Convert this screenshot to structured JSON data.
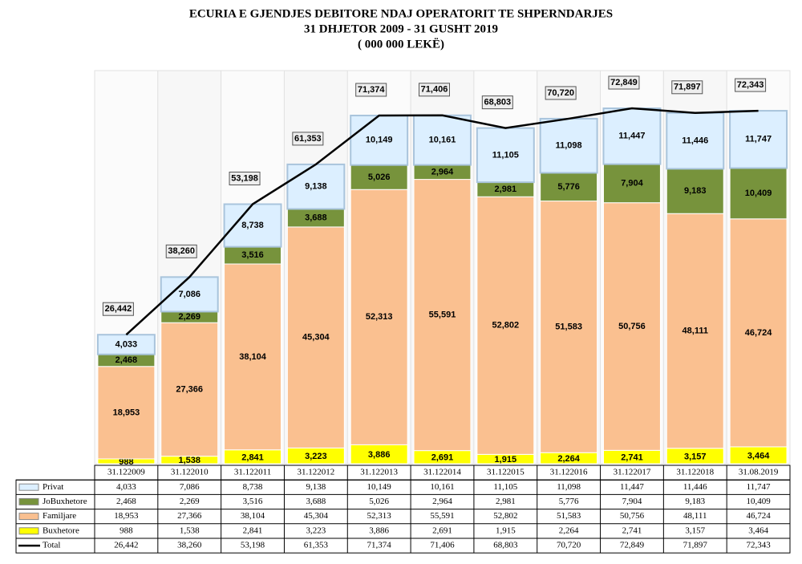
{
  "chart_data": {
    "type": "stacked-bar",
    "title": "ECURIA E GJENDJES DEBITORE NDAJ OPERATORIT TE SHPERNDARJES",
    "subtitle": [
      "31 DHJETOR 2009  - 31 GUSHT 2019",
      "( 000 000 LEKË)"
    ],
    "categories": [
      "31.122009",
      "31.122010",
      "31.122011",
      "31.122012",
      "31.122013",
      "31.122014",
      "31.122015",
      "31.122016",
      "31.122017",
      "31.122018",
      "31.08.2019"
    ],
    "series": [
      {
        "name": "Buxhetore",
        "color": "#ffff00",
        "values": [
          988,
          1538,
          2841,
          3223,
          3886,
          2691,
          1915,
          2264,
          2741,
          3157,
          3464
        ],
        "value_labels": [
          "988",
          "1,538",
          "2,841",
          "3,223",
          "3,886",
          "2,691",
          "1,915",
          "2,264",
          "2,741",
          "3,157",
          "3,464"
        ]
      },
      {
        "name": "Familjare",
        "color": "#fac090",
        "values": [
          18953,
          27366,
          38104,
          45304,
          52313,
          55591,
          52802,
          51583,
          50756,
          48111,
          46724
        ],
        "value_labels": [
          "18,953",
          "27,366",
          "38,104",
          "45,304",
          "52,313",
          "55,591",
          "52,802",
          "51,583",
          "50,756",
          "48,111",
          "46,724"
        ]
      },
      {
        "name": "JoBuxhetore",
        "color": "#77933c",
        "values": [
          2468,
          2269,
          3516,
          3688,
          5026,
          2964,
          2981,
          5776,
          7904,
          9183,
          10409
        ],
        "value_labels": [
          "2,468",
          "2,269",
          "3,516",
          "3,688",
          "5,026",
          "2,964",
          "2,981",
          "5,776",
          "7,904",
          "9,183",
          "10,409"
        ]
      },
      {
        "name": "Privat",
        "color": "#dcefff",
        "values": [
          4033,
          7086,
          8738,
          9138,
          10149,
          10161,
          11105,
          11098,
          11447,
          11446,
          11747
        ],
        "value_labels": [
          "4,033",
          "7,086",
          "8,738",
          "9,138",
          "10,149",
          "10,161",
          "11,105",
          "11,098",
          "11,447",
          "11,446",
          "11,747"
        ]
      }
    ],
    "total": {
      "name": "Total",
      "color": "#000000",
      "values": [
        26442,
        38260,
        53198,
        61353,
        71374,
        71406,
        68803,
        70720,
        72849,
        71897,
        72343
      ],
      "value_labels": [
        "26,442",
        "38,260",
        "53,198",
        "61,353",
        "71,374",
        "71,406",
        "68,803",
        "70,720",
        "72,849",
        "71,897",
        "72,343"
      ]
    }
  }
}
